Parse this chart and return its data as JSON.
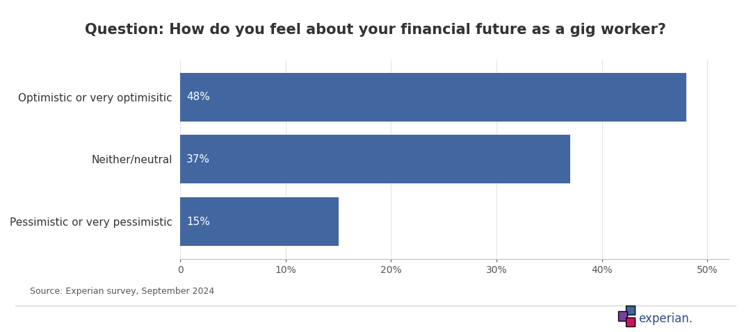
{
  "title": "Question: How do you feel about your financial future as a gig worker?",
  "categories": [
    "Optimistic or very optimisitic",
    "Neither/neutral",
    "Pessimistic or very pessimistic"
  ],
  "values": [
    48,
    37,
    15
  ],
  "bar_color": "#4267A0",
  "label_color": "#ffffff",
  "title_color": "#333333",
  "source_text": "Source: Experian survey, September 2024",
  "xlim": [
    0,
    52
  ],
  "xticks": [
    0,
    10,
    20,
    30,
    40,
    50
  ],
  "xticklabels": [
    "0",
    "10%",
    "20%",
    "30%",
    "40%",
    "50%"
  ],
  "background_color": "#ffffff",
  "title_fontsize": 15,
  "label_fontsize": 11,
  "category_fontsize": 11,
  "source_fontsize": 9,
  "bar_height": 0.78
}
